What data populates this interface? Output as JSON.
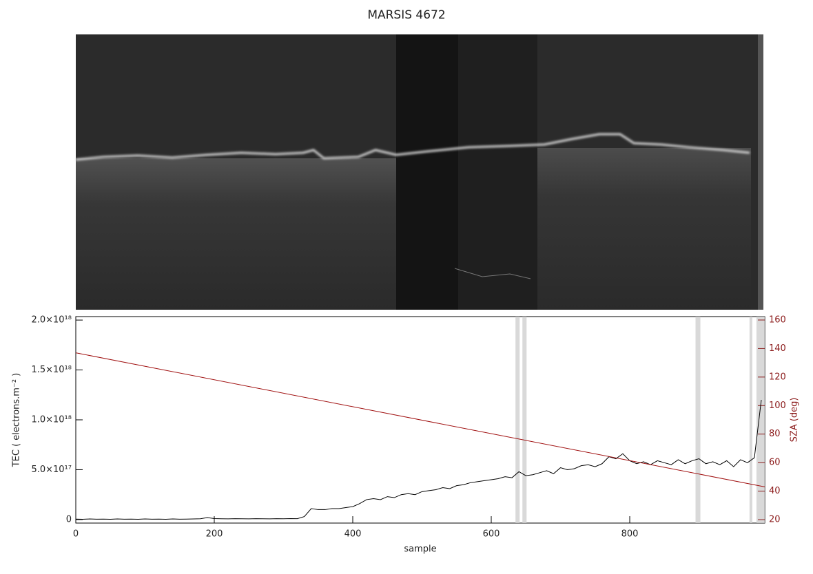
{
  "chart_data": {
    "type": "line",
    "title": "MARSIS 4672",
    "x_label": "sample",
    "y_label": "TEC ( electrons.m⁻² )",
    "y2_label": "SZA (deg)",
    "xlim": [
      0,
      995
    ],
    "xticks": [
      0,
      200,
      400,
      600,
      800
    ],
    "ylim": [
      -3.5e+16,
      2.035e+18
    ],
    "yticks": [
      0,
      {
        "value": 5e+17,
        "label": "5.0×10¹⁷"
      },
      {
        "value": 1e+18,
        "label": "1.0×10¹⁸"
      },
      {
        "value": 1.5e+18,
        "label": "1.5×10¹⁸"
      },
      {
        "value": 2e+18,
        "label": "2.0×10¹⁸"
      }
    ],
    "y2lim": [
      17.6,
      162.4
    ],
    "y2ticks": [
      20,
      40,
      60,
      80,
      100,
      120,
      140,
      160
    ],
    "shaded_ranges": [
      [
        635,
        641
      ],
      [
        645,
        651
      ],
      [
        895,
        902
      ],
      [
        973,
        977
      ],
      [
        983,
        995
      ]
    ],
    "series": [
      {
        "name": "TEC",
        "color": "#000000",
        "x": [
          0,
          10,
          20,
          30,
          40,
          50,
          60,
          70,
          80,
          90,
          100,
          110,
          120,
          130,
          140,
          150,
          160,
          170,
          180,
          190,
          200,
          210,
          220,
          230,
          240,
          250,
          260,
          270,
          280,
          290,
          300,
          310,
          320,
          330,
          340,
          350,
          360,
          370,
          380,
          390,
          400,
          410,
          420,
          430,
          440,
          450,
          460,
          470,
          480,
          490,
          500,
          510,
          520,
          530,
          540,
          550,
          560,
          570,
          580,
          590,
          600,
          610,
          620,
          630,
          640,
          650,
          660,
          670,
          680,
          690,
          700,
          710,
          720,
          730,
          740,
          750,
          760,
          770,
          780,
          790,
          800,
          810,
          820,
          830,
          840,
          850,
          860,
          870,
          880,
          890,
          900,
          910,
          920,
          930,
          940,
          950,
          960,
          970,
          980,
          990
        ],
        "values": [
          5000000000000000.0,
          3000000000000000.0,
          6000000000000000.0,
          4000000000000000.0,
          5000000000000000.0,
          3000000000000000.0,
          6000000000000000.0,
          4000000000000000.0,
          5000000000000000.0,
          3000000000000000.0,
          6000000000000000.0,
          4000000000000000.0,
          5000000000000000.0,
          3000000000000000.0,
          6000000000000000.0,
          4000000000000000.0,
          5000000000000000.0,
          6000000000000000.0,
          8000000000000000.0,
          2e+16,
          1e+16,
          8000000000000000.0,
          7000000000000000.0,
          9000000000000000.0,
          8000000000000000.0,
          7000000000000000.0,
          9000000000000000.0,
          8000000000000000.0,
          7000000000000000.0,
          9000000000000000.0,
          8000000000000000.0,
          1e+16,
          9000000000000000.0,
          3e+16,
          1.1e+17,
          1e+17,
          1e+17,
          1.1e+17,
          1.1e+17,
          1.2e+17,
          1.3e+17,
          1.6e+17,
          2e+17,
          2.1e+17,
          2e+17,
          2.3e+17,
          2.2e+17,
          2.5e+17,
          2.6e+17,
          2.5e+17,
          2.8e+17,
          2.9e+17,
          3e+17,
          3.2e+17,
          3.1e+17,
          3.4e+17,
          3.5e+17,
          3.7e+17,
          3.8e+17,
          3.9e+17,
          4e+17,
          4.1e+17,
          4.3e+17,
          4.2e+17,
          4.8e+17,
          4.4e+17,
          4.5e+17,
          4.7e+17,
          4.9e+17,
          4.6e+17,
          5.2e+17,
          5e+17,
          5.1e+17,
          5.4e+17,
          5.5e+17,
          5.3e+17,
          5.6e+17,
          6.3e+17,
          6.1e+17,
          6.6e+17,
          5.9e+17,
          5.6e+17,
          5.8e+17,
          5.5e+17,
          5.9e+17,
          5.7e+17,
          5.5e+17,
          6e+17,
          5.6e+17,
          5.9e+17,
          6.1e+17,
          5.6e+17,
          5.8e+17,
          5.5e+17,
          5.9e+17,
          5.3e+17,
          6e+17,
          5.7e+17,
          6.2e+17,
          1.2e+18
        ]
      },
      {
        "name": "SZA",
        "color": "#a01010",
        "axis": "y2",
        "x": [
          0,
          995
        ],
        "values": [
          137,
          43
        ]
      }
    ]
  }
}
